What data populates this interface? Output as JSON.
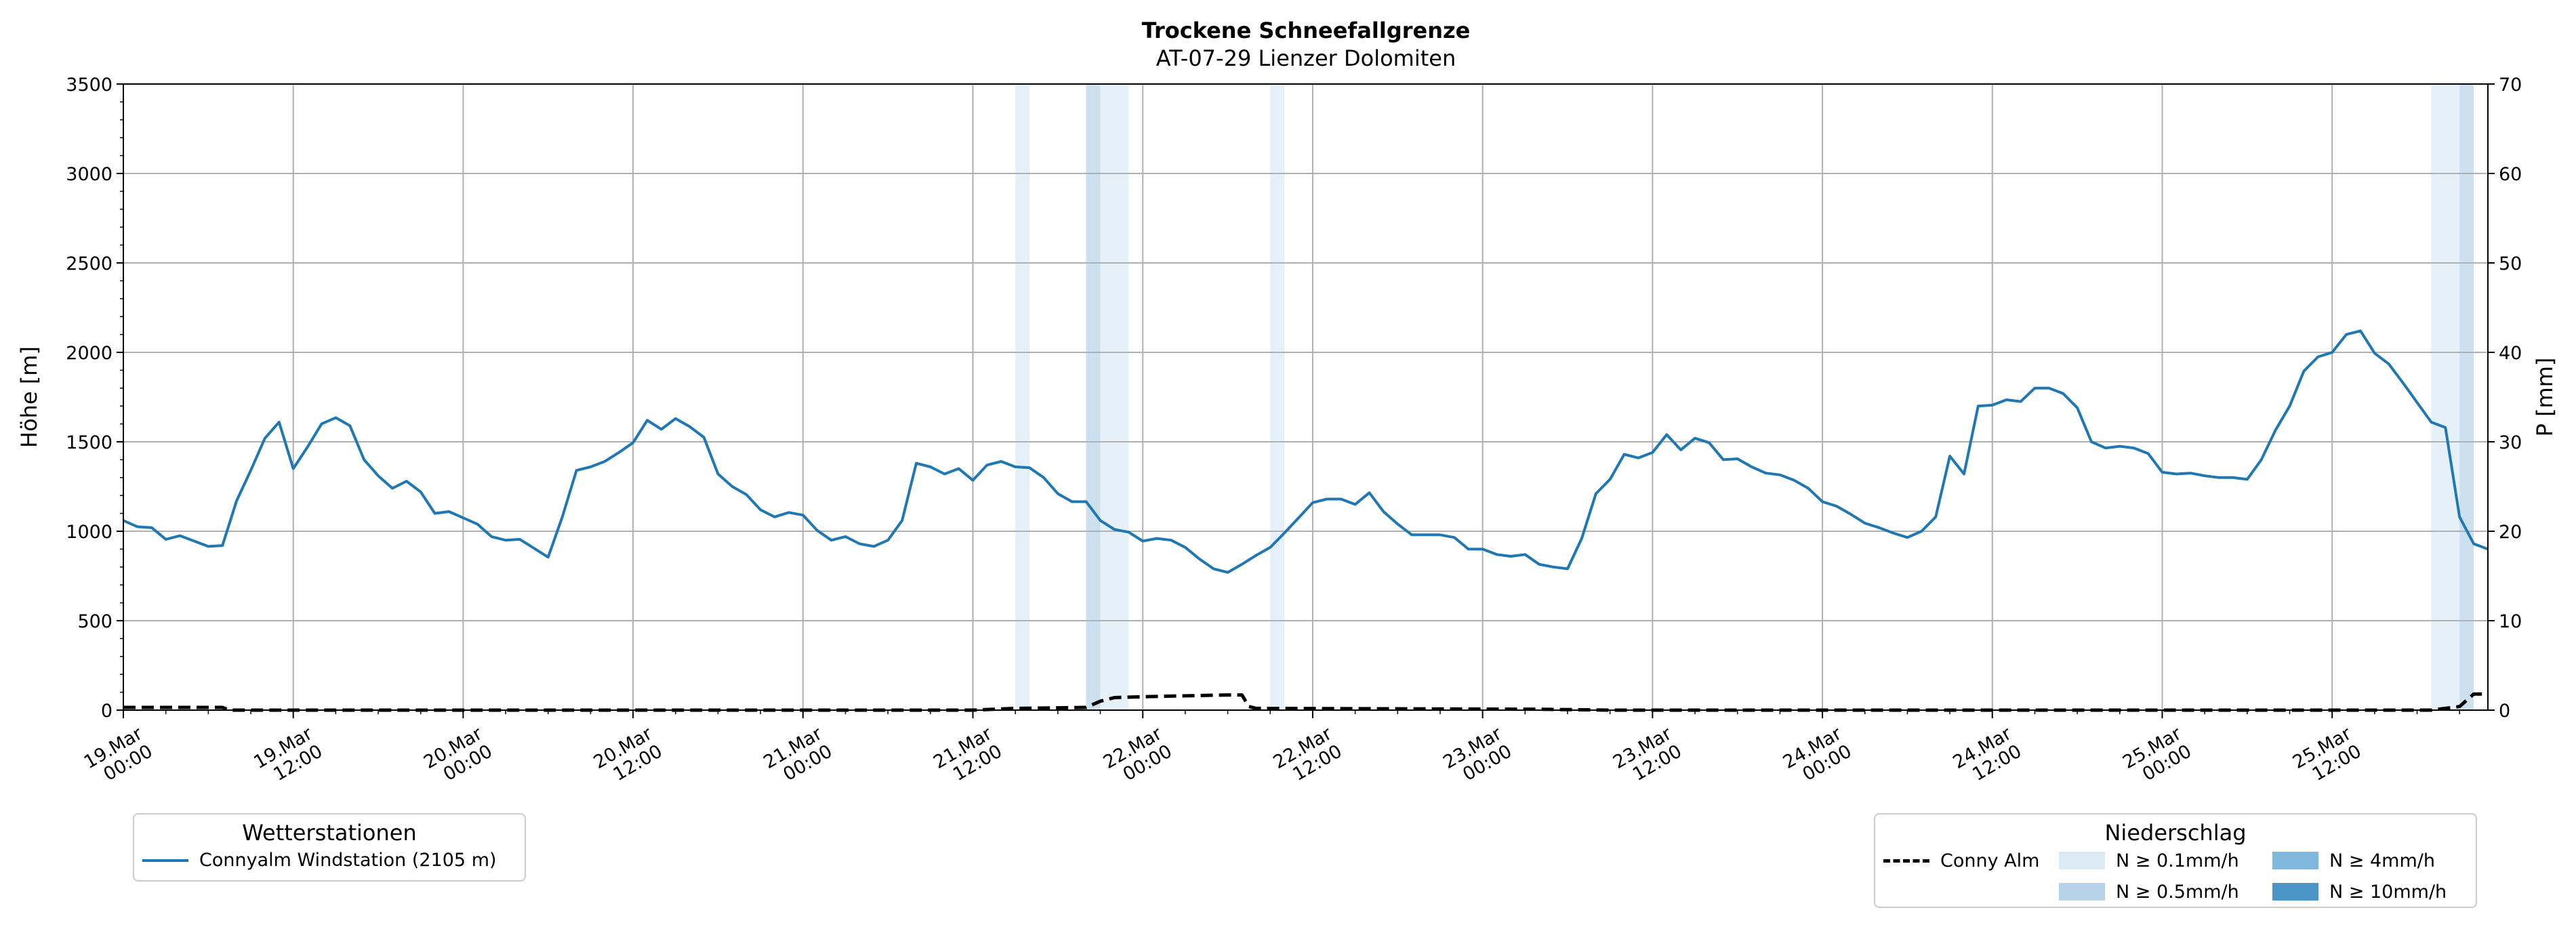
{
  "chart_data": {
    "type": "line",
    "title": "Trockene Schneefallgrenze",
    "subtitle": "AT-07-29 Lienzer Dolomiten",
    "ylabel": "Höhe [m]",
    "y2label": "P [mm]",
    "ylim": [
      0,
      3500
    ],
    "y2lim": [
      0,
      70
    ],
    "yticks": [
      "0",
      "500",
      "1000",
      "1500",
      "2000",
      "2500",
      "3000",
      "3500"
    ],
    "y2ticks": [
      "0",
      "10",
      "20",
      "30",
      "40",
      "50",
      "60",
      "70"
    ],
    "x_hours_range": [
      0,
      167
    ],
    "xticks": [
      {
        "hour": 0,
        "label": [
          "19.Mar",
          "00:00"
        ]
      },
      {
        "hour": 12,
        "label": [
          "19.Mar",
          "12:00"
        ]
      },
      {
        "hour": 24,
        "label": [
          "20.Mar",
          "00:00"
        ]
      },
      {
        "hour": 36,
        "label": [
          "20.Mar",
          "12:00"
        ]
      },
      {
        "hour": 48,
        "label": [
          "21.Mar",
          "00:00"
        ]
      },
      {
        "hour": 60,
        "label": [
          "21.Mar",
          "12:00"
        ]
      },
      {
        "hour": 72,
        "label": [
          "22.Mar",
          "00:00"
        ]
      },
      {
        "hour": 84,
        "label": [
          "22.Mar",
          "12:00"
        ]
      },
      {
        "hour": 96,
        "label": [
          "23.Mar",
          "00:00"
        ]
      },
      {
        "hour": 108,
        "label": [
          "23.Mar",
          "12:00"
        ]
      },
      {
        "hour": 120,
        "label": [
          "24.Mar",
          "00:00"
        ]
      },
      {
        "hour": 132,
        "label": [
          "24.Mar",
          "12:00"
        ]
      },
      {
        "hour": 144,
        "label": [
          "25.Mar",
          "00:00"
        ]
      },
      {
        "hour": 156,
        "label": [
          "25.Mar",
          "12:00"
        ]
      }
    ],
    "grid": true,
    "series": [
      {
        "name": "Connyalm Windstation (2105 m)",
        "color": "#1f77b4",
        "axis": "left",
        "points": [
          [
            0,
            1060
          ],
          [
            1,
            1025
          ],
          [
            2,
            1020
          ],
          [
            3,
            955
          ],
          [
            4,
            975
          ],
          [
            5,
            945
          ],
          [
            6,
            915
          ],
          [
            7,
            920
          ],
          [
            8,
            1170
          ],
          [
            9,
            1340
          ],
          [
            10,
            1520
          ],
          [
            11,
            1610
          ],
          [
            12,
            1350
          ],
          [
            13,
            1470
          ],
          [
            14,
            1600
          ],
          [
            15,
            1635
          ],
          [
            16,
            1590
          ],
          [
            17,
            1400
          ],
          [
            18,
            1310
          ],
          [
            19,
            1240
          ],
          [
            20,
            1280
          ],
          [
            21,
            1220
          ],
          [
            22,
            1100
          ],
          [
            23,
            1110
          ],
          [
            24,
            1075
          ],
          [
            25,
            1040
          ],
          [
            26,
            970
          ],
          [
            27,
            950
          ],
          [
            28,
            955
          ],
          [
            29,
            905
          ],
          [
            30,
            855
          ],
          [
            31,
            1080
          ],
          [
            32,
            1340
          ],
          [
            33,
            1360
          ],
          [
            34,
            1390
          ],
          [
            35,
            1440
          ],
          [
            36,
            1495
          ],
          [
            37,
            1620
          ],
          [
            38,
            1570
          ],
          [
            39,
            1630
          ],
          [
            40,
            1585
          ],
          [
            41,
            1525
          ],
          [
            42,
            1320
          ],
          [
            43,
            1250
          ],
          [
            44,
            1205
          ],
          [
            45,
            1120
          ],
          [
            46,
            1080
          ],
          [
            47,
            1105
          ],
          [
            48,
            1090
          ],
          [
            49,
            1005
          ],
          [
            50,
            950
          ],
          [
            51,
            970
          ],
          [
            52,
            930
          ],
          [
            53,
            915
          ],
          [
            54,
            950
          ],
          [
            55,
            1060
          ],
          [
            56,
            1380
          ],
          [
            57,
            1360
          ],
          [
            58,
            1320
          ],
          [
            59,
            1350
          ],
          [
            60,
            1285
          ],
          [
            61,
            1370
          ],
          [
            62,
            1390
          ],
          [
            63,
            1360
          ],
          [
            64,
            1355
          ],
          [
            65,
            1300
          ],
          [
            66,
            1210
          ],
          [
            67,
            1165
          ],
          [
            68,
            1165
          ],
          [
            69,
            1060
          ],
          [
            70,
            1010
          ],
          [
            71,
            995
          ],
          [
            72,
            945
          ],
          [
            73,
            960
          ],
          [
            74,
            950
          ],
          [
            75,
            910
          ],
          [
            76,
            845
          ],
          [
            77,
            790
          ],
          [
            78,
            770
          ],
          [
            79,
            815
          ],
          [
            80,
            865
          ],
          [
            81,
            910
          ],
          [
            82,
            990
          ],
          [
            83,
            1075
          ],
          [
            84,
            1160
          ],
          [
            85,
            1180
          ],
          [
            86,
            1180
          ],
          [
            87,
            1150
          ],
          [
            88,
            1215
          ],
          [
            89,
            1110
          ],
          [
            90,
            1040
          ],
          [
            91,
            980
          ],
          [
            92,
            980
          ],
          [
            93,
            980
          ],
          [
            94,
            965
          ],
          [
            95,
            900
          ],
          [
            96,
            900
          ],
          [
            97,
            870
          ],
          [
            98,
            860
          ],
          [
            99,
            870
          ],
          [
            100,
            815
          ],
          [
            101,
            800
          ],
          [
            102,
            790
          ],
          [
            103,
            960
          ],
          [
            104,
            1210
          ],
          [
            105,
            1290
          ],
          [
            106,
            1430
          ],
          [
            107,
            1410
          ],
          [
            108,
            1440
          ],
          [
            109,
            1540
          ],
          [
            110,
            1455
          ],
          [
            111,
            1520
          ],
          [
            112,
            1495
          ],
          [
            113,
            1400
          ],
          [
            114,
            1405
          ],
          [
            115,
            1360
          ],
          [
            116,
            1325
          ],
          [
            117,
            1315
          ],
          [
            118,
            1285
          ],
          [
            119,
            1240
          ],
          [
            120,
            1165
          ],
          [
            121,
            1140
          ],
          [
            122,
            1095
          ],
          [
            123,
            1045
          ],
          [
            124,
            1020
          ],
          [
            125,
            990
          ],
          [
            126,
            965
          ],
          [
            127,
            1000
          ],
          [
            128,
            1080
          ],
          [
            129,
            1420
          ],
          [
            130,
            1320
          ],
          [
            131,
            1700
          ],
          [
            132,
            1705
          ],
          [
            133,
            1735
          ],
          [
            134,
            1725
          ],
          [
            135,
            1800
          ],
          [
            136,
            1800
          ],
          [
            137,
            1770
          ],
          [
            138,
            1690
          ],
          [
            139,
            1500
          ],
          [
            140,
            1465
          ],
          [
            141,
            1475
          ],
          [
            142,
            1465
          ],
          [
            143,
            1435
          ],
          [
            144,
            1330
          ],
          [
            145,
            1320
          ],
          [
            146,
            1325
          ],
          [
            147,
            1310
          ],
          [
            148,
            1300
          ],
          [
            149,
            1300
          ],
          [
            150,
            1290
          ],
          [
            151,
            1400
          ],
          [
            152,
            1565
          ],
          [
            153,
            1700
          ],
          [
            154,
            1895
          ],
          [
            155,
            1975
          ],
          [
            156,
            2000
          ],
          [
            157,
            2100
          ],
          [
            158,
            2120
          ],
          [
            159,
            1995
          ],
          [
            160,
            1935
          ],
          [
            161,
            1830
          ],
          [
            162,
            1720
          ],
          [
            163,
            1610
          ],
          [
            164,
            1580
          ],
          [
            165,
            1080
          ],
          [
            166,
            930
          ],
          [
            167,
            900
          ]
        ]
      },
      {
        "name": "Conny Alm",
        "color": "#000000",
        "axis": "right",
        "style": "dashed",
        "points": [
          [
            0,
            0.3
          ],
          [
            7,
            0.3
          ],
          [
            7.5,
            0
          ],
          [
            60,
            0
          ],
          [
            63,
            0.2
          ],
          [
            68,
            0.3
          ],
          [
            69,
            1.0
          ],
          [
            70,
            1.4
          ],
          [
            72,
            1.5
          ],
          [
            75,
            1.6
          ],
          [
            78,
            1.7
          ],
          [
            79,
            1.7
          ],
          [
            79.5,
            0.4
          ],
          [
            80,
            0.2
          ],
          [
            100,
            0.1
          ],
          [
            105,
            0
          ],
          [
            163,
            0
          ],
          [
            165,
            0.4
          ],
          [
            166,
            1.8
          ],
          [
            167,
            1.8
          ]
        ]
      }
    ],
    "precip_bands": [
      {
        "start": 63,
        "end": 64,
        "level": 1
      },
      {
        "start": 68,
        "end": 69,
        "level": 2
      },
      {
        "start": 69,
        "end": 71,
        "level": 1
      },
      {
        "start": 81,
        "end": 82,
        "level": 1
      },
      {
        "start": 163,
        "end": 165,
        "level": 1
      },
      {
        "start": 165,
        "end": 166,
        "level": 2
      }
    ],
    "precip_colors": [
      "#ffffff",
      "#dceaf6",
      "#b7d3ea",
      "#7fb8dc",
      "#4a94c6"
    ],
    "legend_stations": {
      "title": "Wetterstationen",
      "entries": [
        "Connyalm Windstation (2105 m)"
      ]
    },
    "legend_precip": {
      "title": "Niederschlag",
      "line_label": "Conny Alm",
      "levels": [
        "N ≥ 0.1mm/h",
        "N ≥ 0.5mm/h",
        "N ≥ 4mm/h",
        "N ≥ 10mm/h"
      ]
    }
  }
}
